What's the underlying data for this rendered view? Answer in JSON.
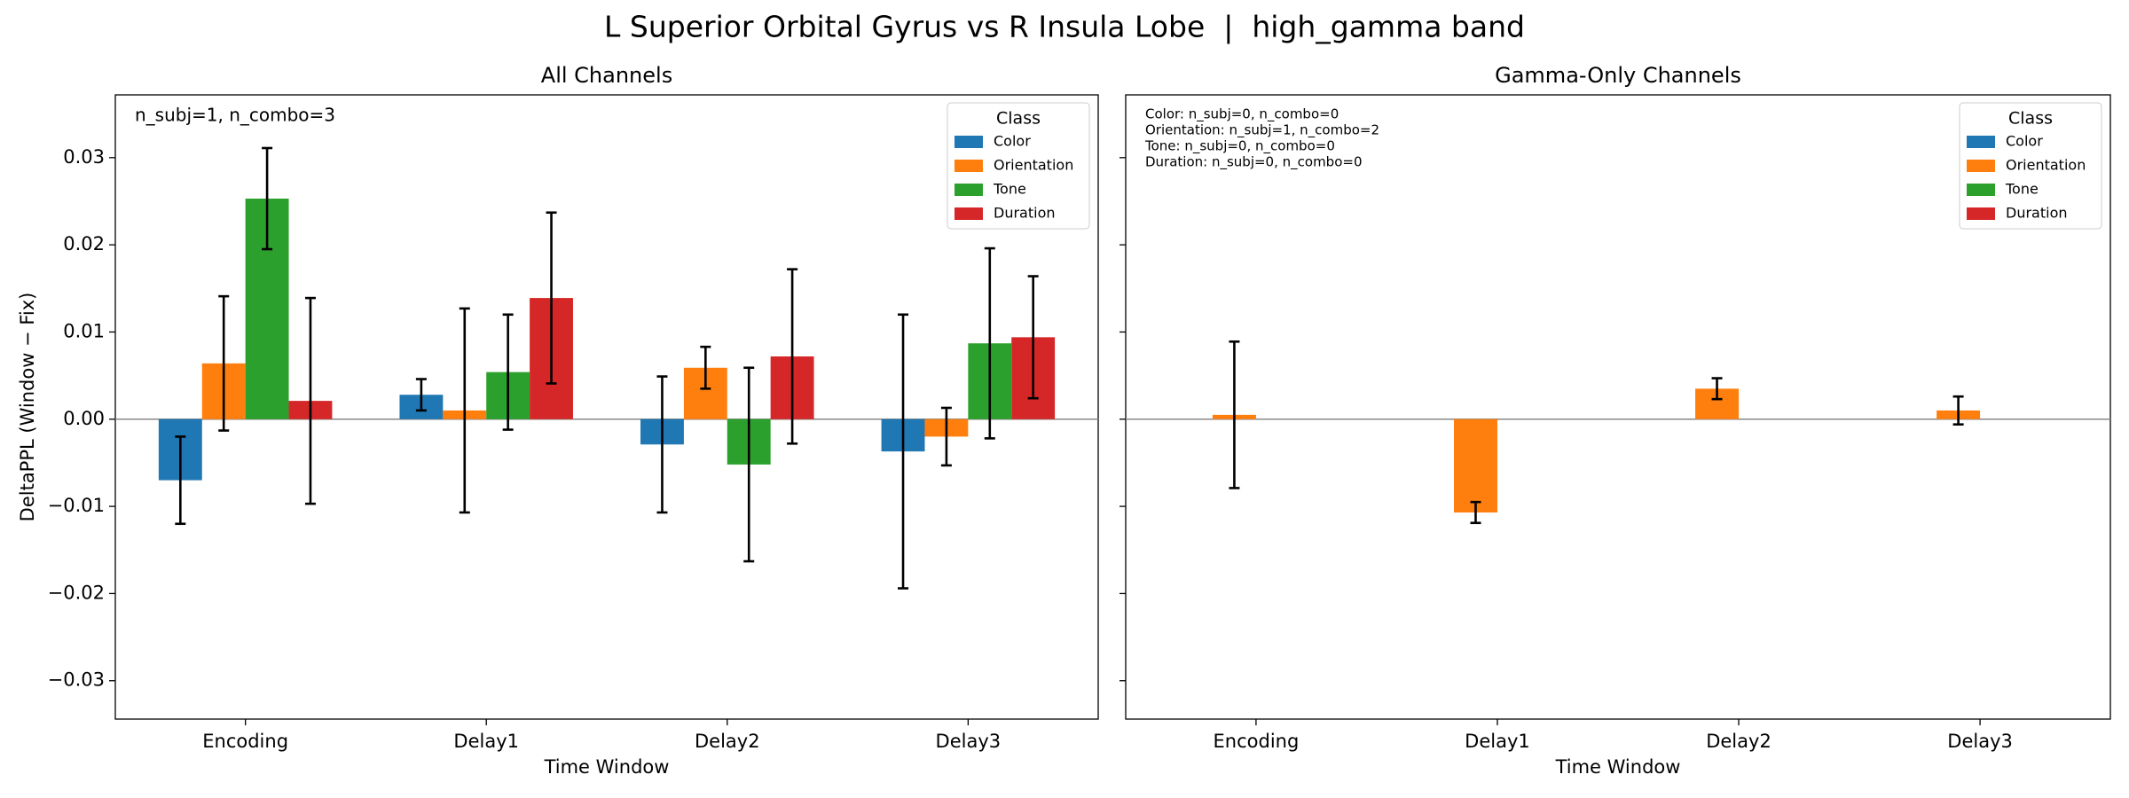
{
  "title": "L Superior Orbital Gyrus vs R Insula Lobe  |  high_gamma band",
  "chart_data": [
    {
      "type": "bar",
      "title": "All Channels",
      "xlabel": "Time Window",
      "ylabel": "DeltaPPL (Window − Fix)",
      "annotation": [
        "n_subj=1, n_combo=3"
      ],
      "categories": [
        "Encoding",
        "Delay1",
        "Delay2",
        "Delay3"
      ],
      "series": [
        {
          "name": "Color",
          "color": "#1f77b4",
          "values": [
            -0.007,
            0.0028,
            -0.0029,
            -0.0037
          ],
          "errors": [
            0.005,
            0.0018,
            0.0078,
            0.0157
          ]
        },
        {
          "name": "Orientation",
          "color": "#ff7f0e",
          "values": [
            0.0064,
            0.001,
            0.0059,
            -0.002
          ],
          "errors": [
            0.0077,
            0.0117,
            0.0024,
            0.0033
          ]
        },
        {
          "name": "Tone",
          "color": "#2ca02c",
          "values": [
            0.0253,
            0.0054,
            -0.0052,
            0.0087
          ],
          "errors": [
            0.0058,
            0.0066,
            0.0111,
            0.0109
          ]
        },
        {
          "name": "Duration",
          "color": "#d62728",
          "values": [
            0.0021,
            0.0139,
            0.0072,
            0.0094
          ],
          "errors": [
            0.0118,
            0.0098,
            0.01,
            0.007
          ]
        }
      ],
      "legend_title": "Class",
      "legend": "upper right",
      "ylim": [
        -0.0344,
        0.0372
      ],
      "yticks": [
        {
          "value": -0.03,
          "label": "−0.03"
        },
        {
          "value": -0.02,
          "label": "−0.02"
        },
        {
          "value": -0.01,
          "label": "−0.01"
        },
        {
          "value": 0,
          "label": "0.00"
        },
        {
          "value": 0.01,
          "label": "0.01"
        },
        {
          "value": 0.02,
          "label": "0.02"
        },
        {
          "value": 0.03,
          "label": "0.03"
        }
      ]
    },
    {
      "type": "bar",
      "title": "Gamma-Only Channels",
      "xlabel": "Time Window",
      "annotation": [
        "Color: n_subj=0, n_combo=0",
        "Orientation: n_subj=1, n_combo=2",
        "Tone: n_subj=0, n_combo=0",
        "Duration: n_subj=0, n_combo=0"
      ],
      "categories": [
        "Encoding",
        "Delay1",
        "Delay2",
        "Delay3"
      ],
      "series": [
        {
          "name": "Color",
          "color": "#1f77b4",
          "values": [
            null,
            null,
            null,
            null
          ],
          "errors": [
            null,
            null,
            null,
            null
          ]
        },
        {
          "name": "Orientation",
          "color": "#ff7f0e",
          "values": [
            0.0005,
            -0.0107,
            0.0035,
            0.001
          ],
          "errors": [
            0.0084,
            0.0012,
            0.0012,
            0.0016
          ]
        },
        {
          "name": "Tone",
          "color": "#2ca02c",
          "values": [
            null,
            null,
            null,
            null
          ],
          "errors": [
            null,
            null,
            null,
            null
          ]
        },
        {
          "name": "Duration",
          "color": "#d62728",
          "values": [
            null,
            null,
            null,
            null
          ],
          "errors": [
            null,
            null,
            null,
            null
          ]
        }
      ],
      "legend_title": "Class",
      "legend": "upper right",
      "ylim": [
        -0.0344,
        0.0372
      ],
      "yticks": [
        -0.03,
        -0.02,
        -0.01,
        0,
        0.01,
        0.02,
        0.03
      ]
    }
  ]
}
